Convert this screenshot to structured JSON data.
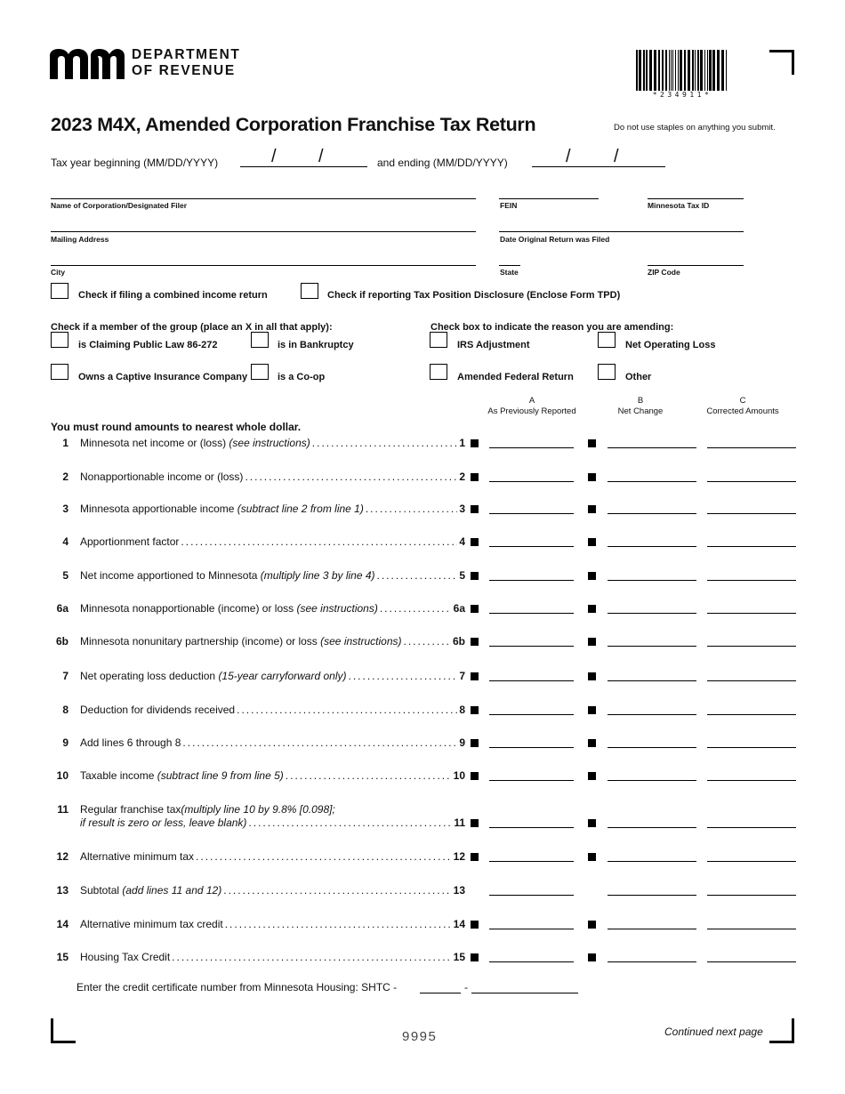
{
  "header": {
    "logo_text": "mn",
    "department_line1": "DEPARTMENT",
    "department_line2": "OF REVENUE",
    "barcode_number": "*234911*",
    "title": "2023 M4X, Amended Corporation Franchise Tax Return",
    "staples_note": "Do not use staples on anything you submit.",
    "tax_year_beginning": "Tax year beginning (MM/DD/YYYY)",
    "and_ending": "and ending (MM/DD/YYYY)",
    "date_slash": "/"
  },
  "fields": {
    "name": "Name of Corporation/Designated Filer",
    "fein": "FEIN",
    "mn_tax_id": "Minnesota Tax ID",
    "mailing_address": "Mailing Address",
    "date_original": "Date Original Return was Filed",
    "city": "City",
    "state": "State",
    "zip": "ZIP Code"
  },
  "checkboxes": {
    "combined": "Check if filing a combined income return",
    "tpd": "Check if reporting Tax Position Disclosure (Enclose Form TPD)",
    "group_heading": "Check if a member of the group (place an X in all that apply):",
    "public_law": "is Claiming Public Law 86-272",
    "bankruptcy": "is in Bankruptcy",
    "captive": "Owns a Captive Insurance Company",
    "coop": "is a Co-op",
    "reason_heading": "Check box to indicate the reason you are amending:",
    "irs": "IRS Adjustment",
    "nol": "Net Operating Loss",
    "amended_federal": "Amended Federal Return",
    "other": "Other"
  },
  "columns": [
    {
      "letter": "A",
      "label": "As Previously Reported"
    },
    {
      "letter": "B",
      "label": "Net Change"
    },
    {
      "letter": "C",
      "label": "Corrected Amounts"
    }
  ],
  "round_note": "You must round amounts to nearest whole dollar.",
  "lines": [
    {
      "num": "1",
      "text": "Minnesota net income or (loss) ",
      "italic": "(see instructions)",
      "label": "1",
      "markers": true
    },
    {
      "num": "2",
      "text": "Nonapportionable income or (loss)",
      "italic": "",
      "label": "2",
      "markers": true
    },
    {
      "num": "3",
      "text": "Minnesota apportionable income ",
      "italic": "(subtract line 2 from line 1)",
      "label": "3",
      "markers": true
    },
    {
      "num": "4",
      "text": "Apportionment factor",
      "italic": "",
      "label": "4",
      "markers": true
    },
    {
      "num": "5",
      "text": "Net income apportioned to Minnesota ",
      "italic": "(multiply line 3 by line 4)",
      "label": "5",
      "markers": true
    },
    {
      "num": "6a",
      "text": "Minnesota nonapportionable (income) or loss ",
      "italic": "(see instructions)",
      "label": "6a",
      "markers": true
    },
    {
      "num": "6b",
      "text": "Minnesota nonunitary partnership (income) or loss ",
      "italic": "(see instructions)",
      "label": "6b",
      "markers": true
    },
    {
      "num": "7",
      "text": "Net operating loss deduction ",
      "italic": "(15-year carryforward only)",
      "label": "7",
      "markers": true
    },
    {
      "num": "8",
      "text": "Deduction for dividends received",
      "italic": "",
      "label": "8",
      "markers": true
    },
    {
      "num": "9",
      "text": "Add lines 6 through 8",
      "italic": "",
      "label": "9",
      "markers": true
    },
    {
      "num": "10",
      "text": "Taxable income ",
      "italic": "(subtract line 9 from line 5)",
      "label": "10",
      "markers": true
    },
    {
      "num": "11",
      "text": "Regular franchise tax ",
      "italic": "(multiply line 10 by 9.8% [0.098];",
      "text2_italic": "if result is zero or less, leave blank)",
      "label": "11",
      "markers": true
    },
    {
      "num": "12",
      "text": "Alternative minimum tax",
      "italic": "",
      "label": "12",
      "markers": true
    },
    {
      "num": "13",
      "text": "Subtotal ",
      "italic": "(add lines 11 and 12)",
      "label": "13",
      "markers": false
    },
    {
      "num": "14",
      "text": "Alternative minimum tax credit",
      "italic": "",
      "label": "14",
      "markers": true
    },
    {
      "num": "15",
      "text": "Housing Tax Credit",
      "italic": "",
      "label": "15",
      "markers": true
    }
  ],
  "shtc": {
    "label": "Enter the credit certificate number from Minnesota Housing: SHTC -",
    "dash": "-"
  },
  "footer": {
    "form_code": "9995",
    "continued": "Continued next page"
  }
}
